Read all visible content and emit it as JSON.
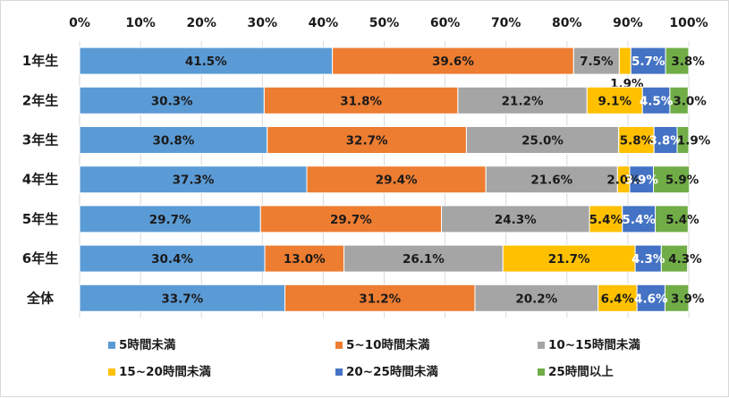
{
  "chart_data": {
    "type": "bar",
    "orientation": "horizontal",
    "stacked": true,
    "xlim": [
      0,
      100
    ],
    "x_ticks": [
      "0%",
      "10%",
      "20%",
      "30%",
      "40%",
      "50%",
      "60%",
      "70%",
      "80%",
      "90%",
      "100%"
    ],
    "x_axis_position": "top",
    "categories": [
      "1年生",
      "2年生",
      "3年生",
      "4年生",
      "5年生",
      "6年生",
      "全体"
    ],
    "legend_position": "bottom",
    "grid": true,
    "series": [
      {
        "name": "5時間未満",
        "color": "#5b9bd5",
        "values": [
          41.5,
          30.3,
          30.8,
          37.3,
          29.7,
          30.4,
          33.7
        ],
        "labels": [
          "41.5%",
          "30.3%",
          "30.8%",
          "37.3%",
          "29.7%",
          "30.4%",
          "33.7%"
        ]
      },
      {
        "name": "5~10時間未満",
        "color": "#ed7d31",
        "values": [
          39.6,
          31.8,
          32.7,
          29.4,
          29.7,
          13.0,
          31.2
        ],
        "labels": [
          "39.6%",
          "31.8%",
          "32.7%",
          "29.4%",
          "29.7%",
          "13.0%",
          "31.2%"
        ]
      },
      {
        "name": "10~15時間未満",
        "color": "#a5a5a5",
        "values": [
          7.5,
          21.2,
          25.0,
          21.6,
          24.3,
          26.1,
          20.2
        ],
        "labels": [
          "7.5%",
          "21.2%",
          "25.0%",
          "21.6%",
          "24.3%",
          "26.1%",
          "20.2%"
        ]
      },
      {
        "name": "15~20時間未満",
        "color": "#ffc000",
        "values": [
          1.9,
          9.1,
          5.8,
          2.0,
          5.4,
          21.7,
          6.4
        ],
        "labels": [
          "1.9%",
          "9.1%",
          "5.8%",
          "2.0%",
          "5.4%",
          "21.7%",
          "6.4%"
        ]
      },
      {
        "name": "20~25時間未満",
        "color": "#4472c4",
        "values": [
          5.7,
          4.5,
          3.8,
          3.9,
          5.4,
          4.3,
          4.6
        ],
        "labels": [
          "5.7%",
          "4.5%",
          "3.8%",
          "3.9%",
          "5.4%",
          "4.3%",
          "4.6%"
        ]
      },
      {
        "name": "25時間以上",
        "color": "#70ad47",
        "values": [
          3.8,
          3.0,
          1.9,
          5.9,
          5.4,
          4.3,
          3.9
        ],
        "labels": [
          "3.8%",
          "3.0%",
          "1.9%",
          "5.9%",
          "5.4%",
          "4.3%",
          "3.9%"
        ]
      }
    ]
  }
}
